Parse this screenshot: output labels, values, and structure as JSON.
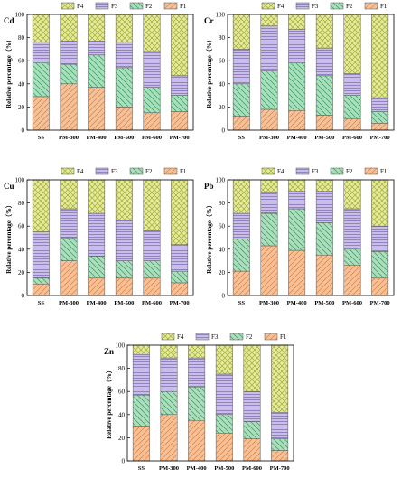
{
  "figure": {
    "legend_order": [
      "F4",
      "F3",
      "F2",
      "F1"
    ],
    "stack_order": [
      "F1",
      "F2",
      "F3",
      "F4"
    ],
    "colors": {
      "F1": "#f6c197",
      "F2": "#a9dfbc",
      "F3": "#c9bfe6",
      "F4": "#e4ea9a",
      "F1_hatch": "#d9834c",
      "F2_hatch": "#3c9a63",
      "F3_hatch": "#7a66b8",
      "F4_hatch": "#a3ad3a"
    }
  },
  "chart_data": [
    {
      "type": "bar",
      "stacked": true,
      "panel_label": "Cd",
      "categories": [
        "SS",
        "PM-300",
        "PM-400",
        "PM-500",
        "PM-600",
        "PM-700"
      ],
      "ylabel": "Relative percentage（%）",
      "ylim": [
        0,
        100
      ],
      "yticks": [
        "0",
        "20",
        "40",
        "60",
        "80",
        "100"
      ],
      "legend": [
        "F4",
        "F3",
        "F2",
        "F1"
      ],
      "series": [
        {
          "name": "F1",
          "values": [
            29,
            40,
            37,
            20,
            15,
            16
          ]
        },
        {
          "name": "F2",
          "values": [
            29,
            17,
            28,
            34,
            22,
            14
          ]
        },
        {
          "name": "F3",
          "values": [
            18,
            20,
            12,
            22,
            31,
            17
          ]
        },
        {
          "name": "F4",
          "values": [
            24,
            23,
            23,
            24,
            32,
            53
          ]
        }
      ]
    },
    {
      "type": "bar",
      "stacked": true,
      "panel_label": "Cr",
      "categories": [
        "SS",
        "PM-300",
        "PM-400",
        "PM-500",
        "PM-600",
        "PM-700"
      ],
      "ylabel": "Relative percentage（%）",
      "ylim": [
        0,
        100
      ],
      "yticks": [
        "0",
        "20",
        "40",
        "60",
        "80",
        "100"
      ],
      "legend": [
        "F4",
        "F3",
        "F2",
        "F1"
      ],
      "series": [
        {
          "name": "F1",
          "values": [
            12,
            18,
            17,
            13,
            10,
            6
          ]
        },
        {
          "name": "F2",
          "values": [
            28,
            33,
            41,
            34,
            20,
            10
          ]
        },
        {
          "name": "F3",
          "values": [
            30,
            39,
            29,
            24,
            19,
            12
          ]
        },
        {
          "name": "F4",
          "values": [
            30,
            10,
            13,
            29,
            51,
            72
          ]
        }
      ]
    },
    {
      "type": "bar",
      "stacked": true,
      "panel_label": "Cu",
      "categories": [
        "SS",
        "PM-300",
        "PM-400",
        "PM-500",
        "PM-600",
        "PM-700"
      ],
      "ylabel": "Relative percentage（%）",
      "ylim": [
        0,
        100
      ],
      "yticks": [
        "0",
        "20",
        "40",
        "60",
        "80",
        "100"
      ],
      "legend": [
        "F4",
        "F3",
        "F2",
        "F1"
      ],
      "series": [
        {
          "name": "F1",
          "values": [
            10,
            30,
            15,
            15,
            15,
            11
          ]
        },
        {
          "name": "F2",
          "values": [
            5,
            20,
            19,
            15,
            15,
            10
          ]
        },
        {
          "name": "F3",
          "values": [
            40,
            25,
            37,
            35,
            26,
            23
          ]
        },
        {
          "name": "F4",
          "values": [
            45,
            25,
            29,
            35,
            44,
            56
          ]
        }
      ]
    },
    {
      "type": "bar",
      "stacked": true,
      "panel_label": "Pb",
      "categories": [
        "SS",
        "PM-300",
        "PM-400",
        "PM-500",
        "PM-600",
        "PM-700"
      ],
      "ylabel": "Relative percentage（%）",
      "ylim": [
        0,
        100
      ],
      "yticks": [
        "0",
        "20",
        "40",
        "60",
        "80",
        "100"
      ],
      "legend": [
        "F4",
        "F3",
        "F2",
        "F1"
      ],
      "series": [
        {
          "name": "F1",
          "values": [
            21,
            43,
            39,
            35,
            26,
            15
          ]
        },
        {
          "name": "F2",
          "values": [
            28,
            28,
            36,
            28,
            14,
            23
          ]
        },
        {
          "name": "F3",
          "values": [
            22,
            18,
            15,
            27,
            35,
            22
          ]
        },
        {
          "name": "F4",
          "values": [
            29,
            11,
            10,
            10,
            25,
            40
          ]
        }
      ]
    },
    {
      "type": "bar",
      "stacked": true,
      "panel_label": "Zn",
      "categories": [
        "SS",
        "PM-300",
        "PM-400",
        "PM-500",
        "PM-600",
        "PM-700"
      ],
      "ylabel": "Relative percentage（%）",
      "ylim": [
        0,
        100
      ],
      "yticks": [
        "0",
        "20",
        "40",
        "60",
        "80",
        "100"
      ],
      "legend": [
        "F4",
        "F3",
        "F2",
        "F1"
      ],
      "series": [
        {
          "name": "F1",
          "values": [
            30,
            40,
            35,
            24,
            19,
            9
          ]
        },
        {
          "name": "F2",
          "values": [
            27,
            20,
            29,
            16,
            15,
            10
          ]
        },
        {
          "name": "F3",
          "values": [
            35,
            29,
            25,
            35,
            26,
            23
          ]
        },
        {
          "name": "F4",
          "values": [
            8,
            11,
            11,
            25,
            40,
            58
          ]
        }
      ]
    }
  ]
}
